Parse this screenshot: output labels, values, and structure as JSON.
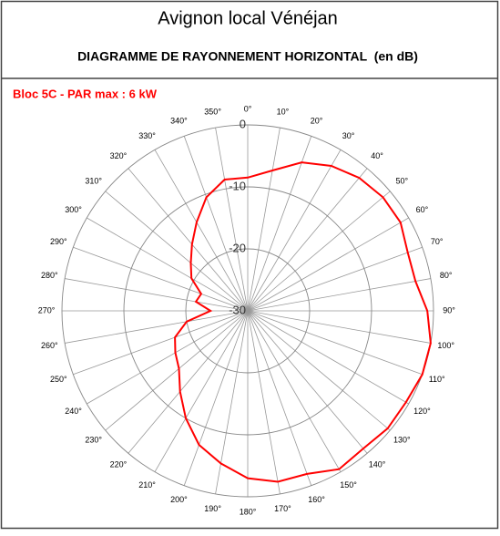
{
  "chart_data": {
    "type": "polar",
    "title": "Avignon local Vénéjan",
    "subtitle": "DIAGRAMME DE RAYONNEMENT HORIZONTAL  (en dB)",
    "categories": [
      "0°",
      "10°",
      "20°",
      "30°",
      "40°",
      "50°",
      "60°",
      "70°",
      "80°",
      "90°",
      "100°",
      "110°",
      "120°",
      "130°",
      "140°",
      "150°",
      "160°",
      "170°",
      "180°",
      "190°",
      "200°",
      "210°",
      "220°",
      "230°",
      "240°",
      "250°",
      "260°",
      "270°",
      "280°",
      "290°",
      "300°",
      "310°",
      "320°",
      "330°",
      "340°",
      "350°"
    ],
    "series": [
      {
        "name": "Bloc 5C - PAR max : 6 kW",
        "color": "#ff0000",
        "values": [
          -8.5,
          -7,
          -4.5,
          -3,
          -2,
          -1.5,
          -1.5,
          -2.5,
          -2.5,
          -1,
          0,
          0,
          -0.5,
          -0.5,
          -1,
          -0.5,
          -2,
          -2,
          -3,
          -5,
          -7,
          -10,
          -13,
          -15.5,
          -16.5,
          -17.5,
          -20,
          -24,
          -21.5,
          -22,
          -19.5,
          -18,
          -16,
          -13.5,
          -10.5,
          -8.5
        ]
      }
    ],
    "ylim": [
      -30,
      0
    ],
    "yticks": [
      -30,
      -20,
      -10,
      0
    ],
    "grid": true
  }
}
